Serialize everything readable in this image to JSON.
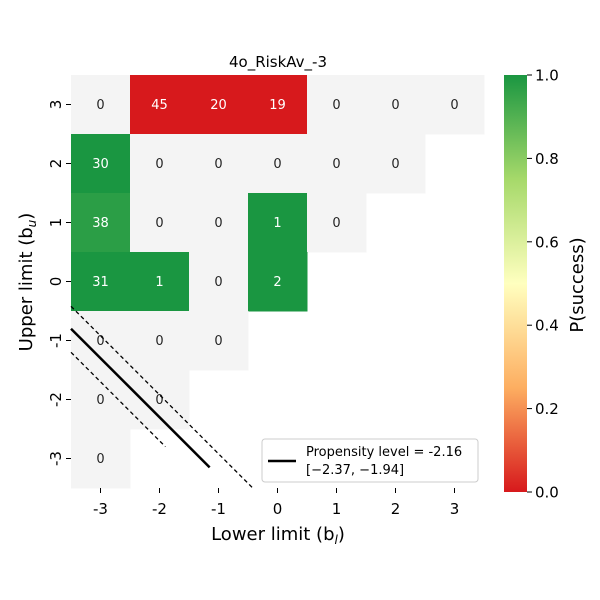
{
  "chart_data": {
    "type": "heatmap",
    "title": "4o_RiskAv_-3",
    "xlabel": "Lower limit (b",
    "xlabel_sub": "l",
    "xlabel_close": ")",
    "ylabel": "Upper limit (b",
    "ylabel_sub": "u",
    "ylabel_close": ")",
    "x_categories": [
      "-3",
      "-2",
      "-1",
      "0",
      "1",
      "2",
      "3"
    ],
    "y_categories": [
      "3",
      "2",
      "1",
      "0",
      "-1",
      "-2",
      "-3"
    ],
    "cells": [
      {
        "x": "-3",
        "y": "3",
        "count": 0,
        "p": null
      },
      {
        "x": "-2",
        "y": "3",
        "count": 45,
        "p": 0.0
      },
      {
        "x": "-1",
        "y": "3",
        "count": 20,
        "p": 0.0
      },
      {
        "x": "0",
        "y": "3",
        "count": 19,
        "p": 0.0
      },
      {
        "x": "1",
        "y": "3",
        "count": 0,
        "p": null
      },
      {
        "x": "2",
        "y": "3",
        "count": 0,
        "p": null
      },
      {
        "x": "3",
        "y": "3",
        "count": 0,
        "p": null
      },
      {
        "x": "-3",
        "y": "2",
        "count": 30,
        "p": 1.0
      },
      {
        "x": "-2",
        "y": "2",
        "count": 0,
        "p": null
      },
      {
        "x": "-1",
        "y": "2",
        "count": 0,
        "p": null
      },
      {
        "x": "0",
        "y": "2",
        "count": 0,
        "p": null
      },
      {
        "x": "1",
        "y": "2",
        "count": 0,
        "p": null
      },
      {
        "x": "2",
        "y": "2",
        "count": 0,
        "p": null
      },
      {
        "x": "-3",
        "y": "1",
        "count": 38,
        "p": 0.97
      },
      {
        "x": "-2",
        "y": "1",
        "count": 0,
        "p": null
      },
      {
        "x": "-1",
        "y": "1",
        "count": 0,
        "p": null
      },
      {
        "x": "0",
        "y": "1",
        "count": 1,
        "p": 1.0
      },
      {
        "x": "1",
        "y": "1",
        "count": 0,
        "p": null
      },
      {
        "x": "-3",
        "y": "0",
        "count": 31,
        "p": 1.0
      },
      {
        "x": "-2",
        "y": "0",
        "count": 1,
        "p": 1.0
      },
      {
        "x": "-1",
        "y": "0",
        "count": 0,
        "p": null
      },
      {
        "x": "0",
        "y": "0",
        "count": 2,
        "p": 1.0
      },
      {
        "x": "-3",
        "y": "-1",
        "count": 0,
        "p": null
      },
      {
        "x": "-2",
        "y": "-1",
        "count": 0,
        "p": null
      },
      {
        "x": "-1",
        "y": "-1",
        "count": 0,
        "p": null
      },
      {
        "x": "-3",
        "y": "-2",
        "count": 0,
        "p": null
      },
      {
        "x": "-2",
        "y": "-2",
        "count": 0,
        "p": null
      },
      {
        "x": "-3",
        "y": "-3",
        "count": 0,
        "p": null
      }
    ],
    "lines": [
      {
        "name": "propensity",
        "style": "solid",
        "points": [
          [
            -3.5,
            -0.8
          ],
          [
            -1.15,
            -3.15
          ]
        ]
      },
      {
        "name": "ci-upper",
        "style": "dashed",
        "points": [
          [
            -3.5,
            -0.42
          ],
          [
            -0.4,
            -3.52
          ]
        ]
      },
      {
        "name": "ci-lower",
        "style": "dashed",
        "points": [
          [
            -3.5,
            -1.2
          ],
          [
            -1.9,
            -2.8
          ]
        ]
      }
    ],
    "legend": {
      "placement": "lower-right",
      "label_line1": "Propensity level = -2.16",
      "label_line2": "[−2.37, −1.94]"
    },
    "colorbar": {
      "label": "P(success)",
      "range": [
        0.0,
        1.0
      ],
      "ticks": [
        "0.0",
        "0.2",
        "0.4",
        "0.6",
        "0.8",
        "1.0"
      ],
      "colors": {
        "low": "#d7191c",
        "mid": "#ffffbf",
        "high": "#1a9641"
      }
    },
    "empty_cell_color": "#f4f4f4"
  }
}
